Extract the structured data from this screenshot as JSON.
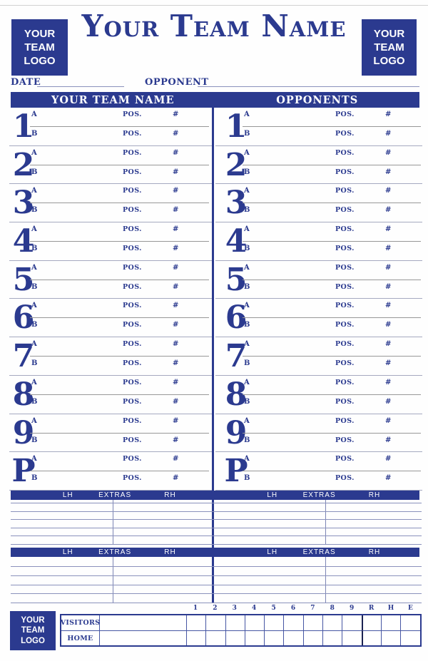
{
  "colors": {
    "primary": "#2b3a8f",
    "accent_dark": "#1b2252"
  },
  "header": {
    "left_logo_text": "YOUR TEAM LOGO",
    "right_logo_text": "YOUR TEAM LOGO",
    "title": "Your Team Name"
  },
  "meta": {
    "date_label": "DATE",
    "opponent_label": "OPPONENT"
  },
  "columns_bar": {
    "left_label": "YOUR TEAM NAME",
    "right_label": "OPPONENTS"
  },
  "lineup": {
    "slots": [
      "1",
      "2",
      "3",
      "4",
      "5",
      "6",
      "7",
      "8",
      "9",
      "P"
    ],
    "sub_row_labels": [
      "A",
      "B"
    ],
    "position_label": "POS.",
    "number_label": "#"
  },
  "extras": {
    "left_hand_label": "LH",
    "title": "EXTRAS",
    "right_hand_label": "RH",
    "sections": 2,
    "writing_lines_per_section": [
      6,
      5
    ]
  },
  "scoreboard": {
    "column_headers": [
      "1",
      "2",
      "3",
      "4",
      "5",
      "6",
      "7",
      "8",
      "9",
      "R",
      "H",
      "E"
    ],
    "row_labels": [
      "VISITORS",
      "HOME"
    ],
    "logo_text": "YOUR TEAM LOGO"
  }
}
